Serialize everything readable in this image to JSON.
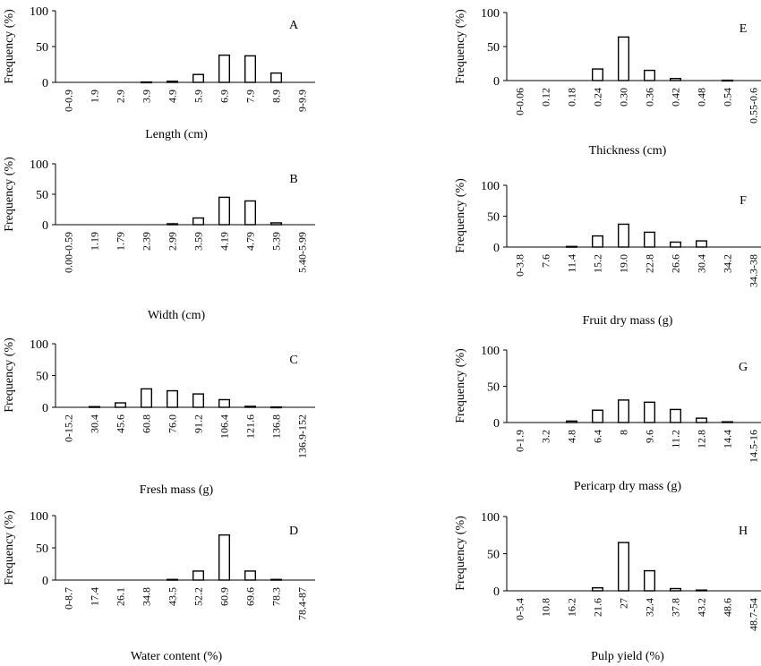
{
  "chart_data": [
    {
      "type": "bar",
      "panel_letter": "A",
      "categories": [
        "0-0.9",
        "1.9",
        "2.9",
        "3.9",
        "4.9",
        "5.9",
        "6.9",
        "7.9",
        "8.9",
        "9-9.9"
      ],
      "values": [
        0,
        0,
        0,
        0.5,
        1.5,
        11,
        38,
        37,
        13,
        0
      ],
      "xlabel": "Length (cm)",
      "ylabel": "Frequency (%)",
      "ylim": [
        0,
        100
      ],
      "yticks": [
        0,
        50,
        100
      ]
    },
    {
      "type": "bar",
      "panel_letter": "B",
      "categories": [
        "0.00-0.59",
        "1.19",
        "1.79",
        "2.39",
        "2.99",
        "3.59",
        "4.19",
        "4.79",
        "5.39",
        "5.40-5.99"
      ],
      "values": [
        0,
        0,
        0,
        0,
        1.5,
        11,
        45,
        39,
        3,
        0
      ],
      "xlabel": "Width (cm)",
      "ylabel": "Frequency (%)",
      "ylim": [
        0,
        100
      ],
      "yticks": [
        0,
        50,
        100
      ]
    },
    {
      "type": "bar",
      "panel_letter": "C",
      "categories": [
        "0-15.2",
        "30.4",
        "45.6",
        "60.8",
        "76.0",
        "91.2",
        "106.4",
        "121.6",
        "136.8",
        "136.9-152"
      ],
      "values": [
        0,
        1,
        7,
        29,
        26,
        21,
        12,
        1.5,
        0.5,
        0
      ],
      "xlabel": "Fresh mass (g)",
      "ylabel": "Frequency (%)",
      "ylim": [
        0,
        100
      ],
      "yticks": [
        0,
        50,
        100
      ]
    },
    {
      "type": "bar",
      "panel_letter": "D",
      "categories": [
        "0-8.7",
        "17.4",
        "26.1",
        "34.8",
        "43.5",
        "52.2",
        "60.9",
        "69.6",
        "78.3",
        "78.4-87"
      ],
      "values": [
        0,
        0,
        0,
        0,
        1,
        14,
        70,
        14,
        1,
        0
      ],
      "xlabel": "Water content (%)",
      "ylabel": "Frequency (%)",
      "ylim": [
        0,
        100
      ],
      "yticks": [
        0,
        50,
        100
      ]
    },
    {
      "type": "bar",
      "panel_letter": "E",
      "categories": [
        "0-0.06",
        "0.12",
        "0.18",
        "0.24",
        "0.30",
        "0.36",
        "0.42",
        "0.48",
        "0.54",
        "0.55-0.6"
      ],
      "values": [
        0,
        0,
        0,
        17,
        64,
        15,
        3,
        0,
        0.5,
        0
      ],
      "xlabel": "Thickness (cm)",
      "ylabel": "Frequency (%)",
      "ylim": [
        0,
        100
      ],
      "yticks": [
        0,
        50,
        100
      ]
    },
    {
      "type": "bar",
      "panel_letter": "F",
      "categories": [
        "0-3.8",
        "7.6",
        "11.4",
        "15.2",
        "19.0",
        "22.8",
        "26.6",
        "30.4",
        "34.2",
        "34.3-38"
      ],
      "values": [
        0,
        0,
        1,
        18,
        37,
        24,
        8,
        10,
        0,
        0
      ],
      "xlabel": "Fruit dry mass (g)",
      "ylabel": "Frequency (%)",
      "ylim": [
        0,
        100
      ],
      "yticks": [
        0,
        50,
        100
      ]
    },
    {
      "type": "bar",
      "panel_letter": "G",
      "categories": [
        "0-1.9",
        "3.2",
        "4.8",
        "6.4",
        "8",
        "9.6",
        "11.2",
        "12.8",
        "14.4",
        "14.5-16"
      ],
      "values": [
        0,
        0,
        2,
        17,
        31,
        28,
        18,
        6,
        1,
        0
      ],
      "xlabel": "Pericarp dry mass (g)",
      "ylabel": "Frequency (%)",
      "ylim": [
        0,
        100
      ],
      "yticks": [
        0,
        50,
        100
      ]
    },
    {
      "type": "bar",
      "panel_letter": "H",
      "categories": [
        "0-5.4",
        "10.8",
        "16.2",
        "21.6",
        "27",
        "32.4",
        "37.8",
        "43.2",
        "48.6",
        "48.7-54"
      ],
      "values": [
        0,
        0,
        0,
        4,
        65,
        27,
        3,
        1,
        0,
        0
      ],
      "xlabel": "Pulp yield (%)",
      "ylabel": "Frequency (%)",
      "ylim": [
        0,
        100
      ],
      "yticks": [
        0,
        50,
        100
      ]
    }
  ]
}
